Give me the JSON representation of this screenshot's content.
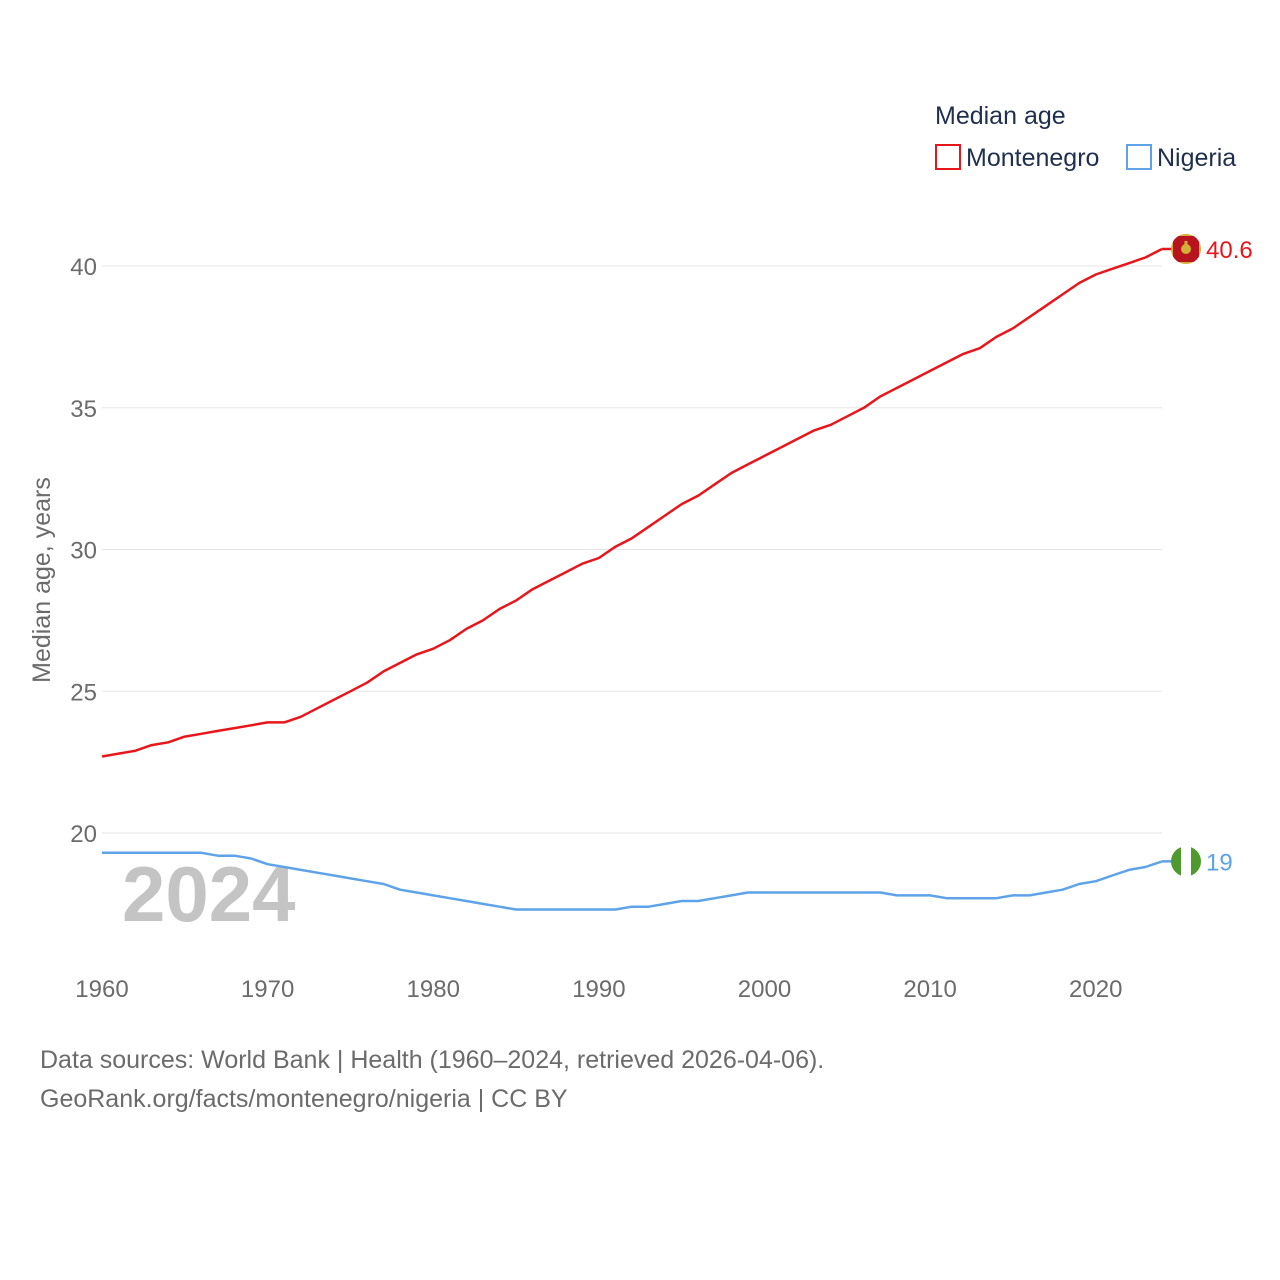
{
  "chart_data": {
    "type": "line",
    "ylabel": "Median age, years",
    "legend_title": "Median age",
    "legend_position": "top-right",
    "big_year_label": "2024",
    "x_ticks": [
      1960,
      1970,
      1980,
      1990,
      2000,
      2010,
      2020
    ],
    "y_ticks": [
      20,
      25,
      30,
      35,
      40
    ],
    "xlim": [
      1960,
      2024
    ],
    "ylim": [
      15.5,
      41.5
    ],
    "grid": true,
    "x": [
      1960,
      1961,
      1962,
      1963,
      1964,
      1965,
      1966,
      1967,
      1968,
      1969,
      1970,
      1971,
      1972,
      1973,
      1974,
      1975,
      1976,
      1977,
      1978,
      1979,
      1980,
      1981,
      1982,
      1983,
      1984,
      1985,
      1986,
      1987,
      1988,
      1989,
      1990,
      1991,
      1992,
      1993,
      1994,
      1995,
      1996,
      1997,
      1998,
      1999,
      2000,
      2001,
      2002,
      2003,
      2004,
      2005,
      2006,
      2007,
      2008,
      2009,
      2010,
      2011,
      2012,
      2013,
      2014,
      2015,
      2016,
      2017,
      2018,
      2019,
      2020,
      2021,
      2022,
      2023,
      2024
    ],
    "series": [
      {
        "name": "Montenegro",
        "color": "#e8161b",
        "end_label": "40.6",
        "values": [
          22.7,
          22.8,
          22.9,
          23.1,
          23.2,
          23.4,
          23.5,
          23.6,
          23.7,
          23.8,
          23.9,
          23.9,
          24.1,
          24.4,
          24.7,
          25.0,
          25.3,
          25.7,
          26.0,
          26.3,
          26.5,
          26.8,
          27.2,
          27.5,
          27.9,
          28.2,
          28.6,
          28.9,
          29.2,
          29.5,
          29.7,
          30.1,
          30.4,
          30.8,
          31.2,
          31.6,
          31.9,
          32.3,
          32.7,
          33.0,
          33.3,
          33.6,
          33.9,
          34.2,
          34.4,
          34.7,
          35.0,
          35.4,
          35.7,
          36.0,
          36.3,
          36.6,
          36.9,
          37.1,
          37.5,
          37.8,
          38.2,
          38.6,
          39.0,
          39.4,
          39.7,
          39.9,
          40.1,
          40.3,
          40.6
        ]
      },
      {
        "name": "Nigeria",
        "color": "#5ea3e7",
        "end_label": "19",
        "values": [
          19.3,
          19.3,
          19.3,
          19.3,
          19.3,
          19.3,
          19.3,
          19.2,
          19.2,
          19.1,
          18.9,
          18.8,
          18.7,
          18.6,
          18.5,
          18.4,
          18.3,
          18.2,
          18.0,
          17.9,
          17.8,
          17.7,
          17.6,
          17.5,
          17.4,
          17.3,
          17.3,
          17.3,
          17.3,
          17.3,
          17.3,
          17.3,
          17.4,
          17.4,
          17.5,
          17.6,
          17.6,
          17.7,
          17.8,
          17.9,
          17.9,
          17.9,
          17.9,
          17.9,
          17.9,
          17.9,
          17.9,
          17.9,
          17.8,
          17.8,
          17.8,
          17.7,
          17.7,
          17.7,
          17.7,
          17.8,
          17.8,
          17.9,
          18.0,
          18.2,
          18.3,
          18.5,
          18.7,
          18.8,
          19.0
        ]
      }
    ]
  },
  "source": {
    "line1": "Data sources: World Bank | Health (1960–2024, retrieved 2026-04-06).",
    "line2": "GeoRank.org/facts/montenegro/nigeria | CC BY"
  }
}
